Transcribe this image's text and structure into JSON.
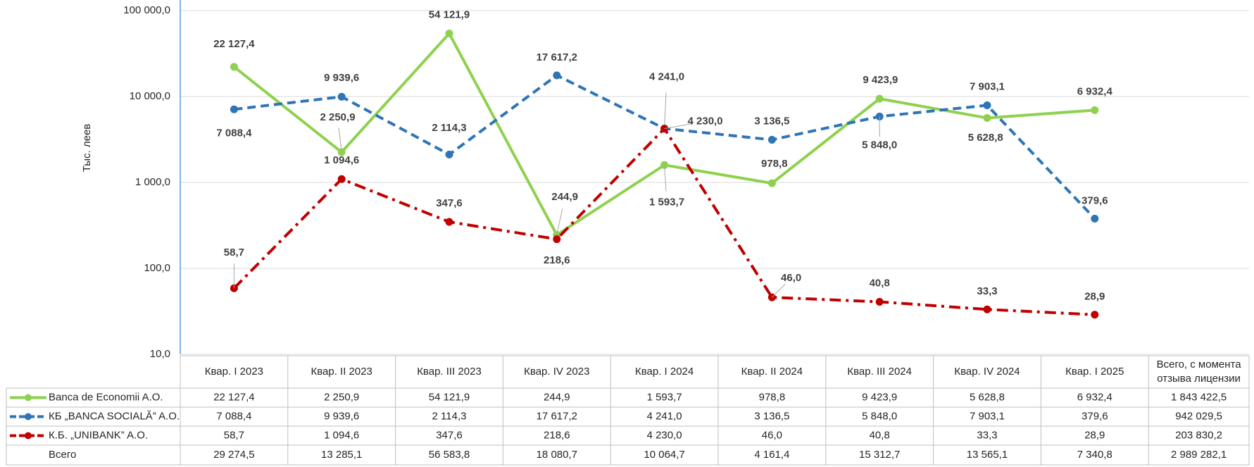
{
  "chart_data": {
    "type": "line",
    "y_label": "Тыс. леев",
    "log_scale": true,
    "grid": true,
    "categories": [
      "Квар. I 2023",
      "Квар. II 2023",
      "Квар. III 2023",
      "Квар. IV 2023",
      "Квар. I 2024",
      "Квар. II 2024",
      "Квар. III 2024",
      "Квар. IV 2024",
      "Квар. I 2025"
    ],
    "ylim": [
      10,
      100000
    ],
    "yticks": [
      {
        "value": 10,
        "label": "10,0"
      },
      {
        "value": 100,
        "label": "100,0"
      },
      {
        "value": 1000,
        "label": "1 000,0"
      },
      {
        "value": 10000,
        "label": "10 000,0"
      },
      {
        "value": 100000,
        "label": "100 000,0"
      }
    ],
    "total_header": "Всего, с момента отзыва лицензии",
    "series": [
      {
        "name": "Banca de Economii A.O.",
        "color": "#8fd14f",
        "line_style": "solid",
        "values": [
          22127.4,
          2250.9,
          54121.9,
          244.9,
          1593.7,
          978.8,
          9423.9,
          5628.8,
          6932.4
        ],
        "value_labels": [
          "22 127,4",
          "2 250,9",
          "54 121,9",
          "244,9",
          "1 593,7",
          "978,8",
          "9 423,9",
          "5 628,8",
          "6 932,4"
        ],
        "total": 1843422.5,
        "total_label": "1 843 422,5"
      },
      {
        "name": "КБ „BANCA SOCIALĂ” A.O.",
        "color": "#2e75b6",
        "line_style": "dashed",
        "values": [
          7088.4,
          9939.6,
          2114.3,
          17617.2,
          4241.0,
          3136.5,
          5848.0,
          7903.1,
          379.6
        ],
        "value_labels": [
          "7 088,4",
          "9 939,6",
          "2 114,3",
          "17 617,2",
          "4 241,0",
          "3 136,5",
          "5 848,0",
          "7 903,1",
          "379,6"
        ],
        "total": 942029.5,
        "total_label": "942 029,5"
      },
      {
        "name": "К.Б. „UNIBANK” A.O.",
        "color": "#c00000",
        "line_style": "dashdot",
        "values": [
          58.7,
          1094.6,
          347.6,
          218.6,
          4230.0,
          46.0,
          40.8,
          33.3,
          28.9
        ],
        "value_labels": [
          "58,7",
          "1 094,6",
          "347,6",
          "218,6",
          "4 230,0",
          "46,0",
          "40,8",
          "33,3",
          "28,9"
        ],
        "total": 203830.2,
        "total_label": "203 830,2"
      }
    ],
    "total_row": {
      "name": "Всего",
      "values": [
        29274.5,
        13285.1,
        56583.8,
        18080.7,
        10064.7,
        4161.4,
        15312.7,
        13565.1,
        7340.8
      ],
      "value_labels": [
        "29 274,5",
        "13 285,1",
        "56 583,8",
        "18 080,7",
        "10 064,7",
        "4 161,4",
        "15 312,7",
        "13 565,1",
        "7 340,8"
      ],
      "total": 2989282.1,
      "total_label": "2 989 282,1"
    }
  }
}
